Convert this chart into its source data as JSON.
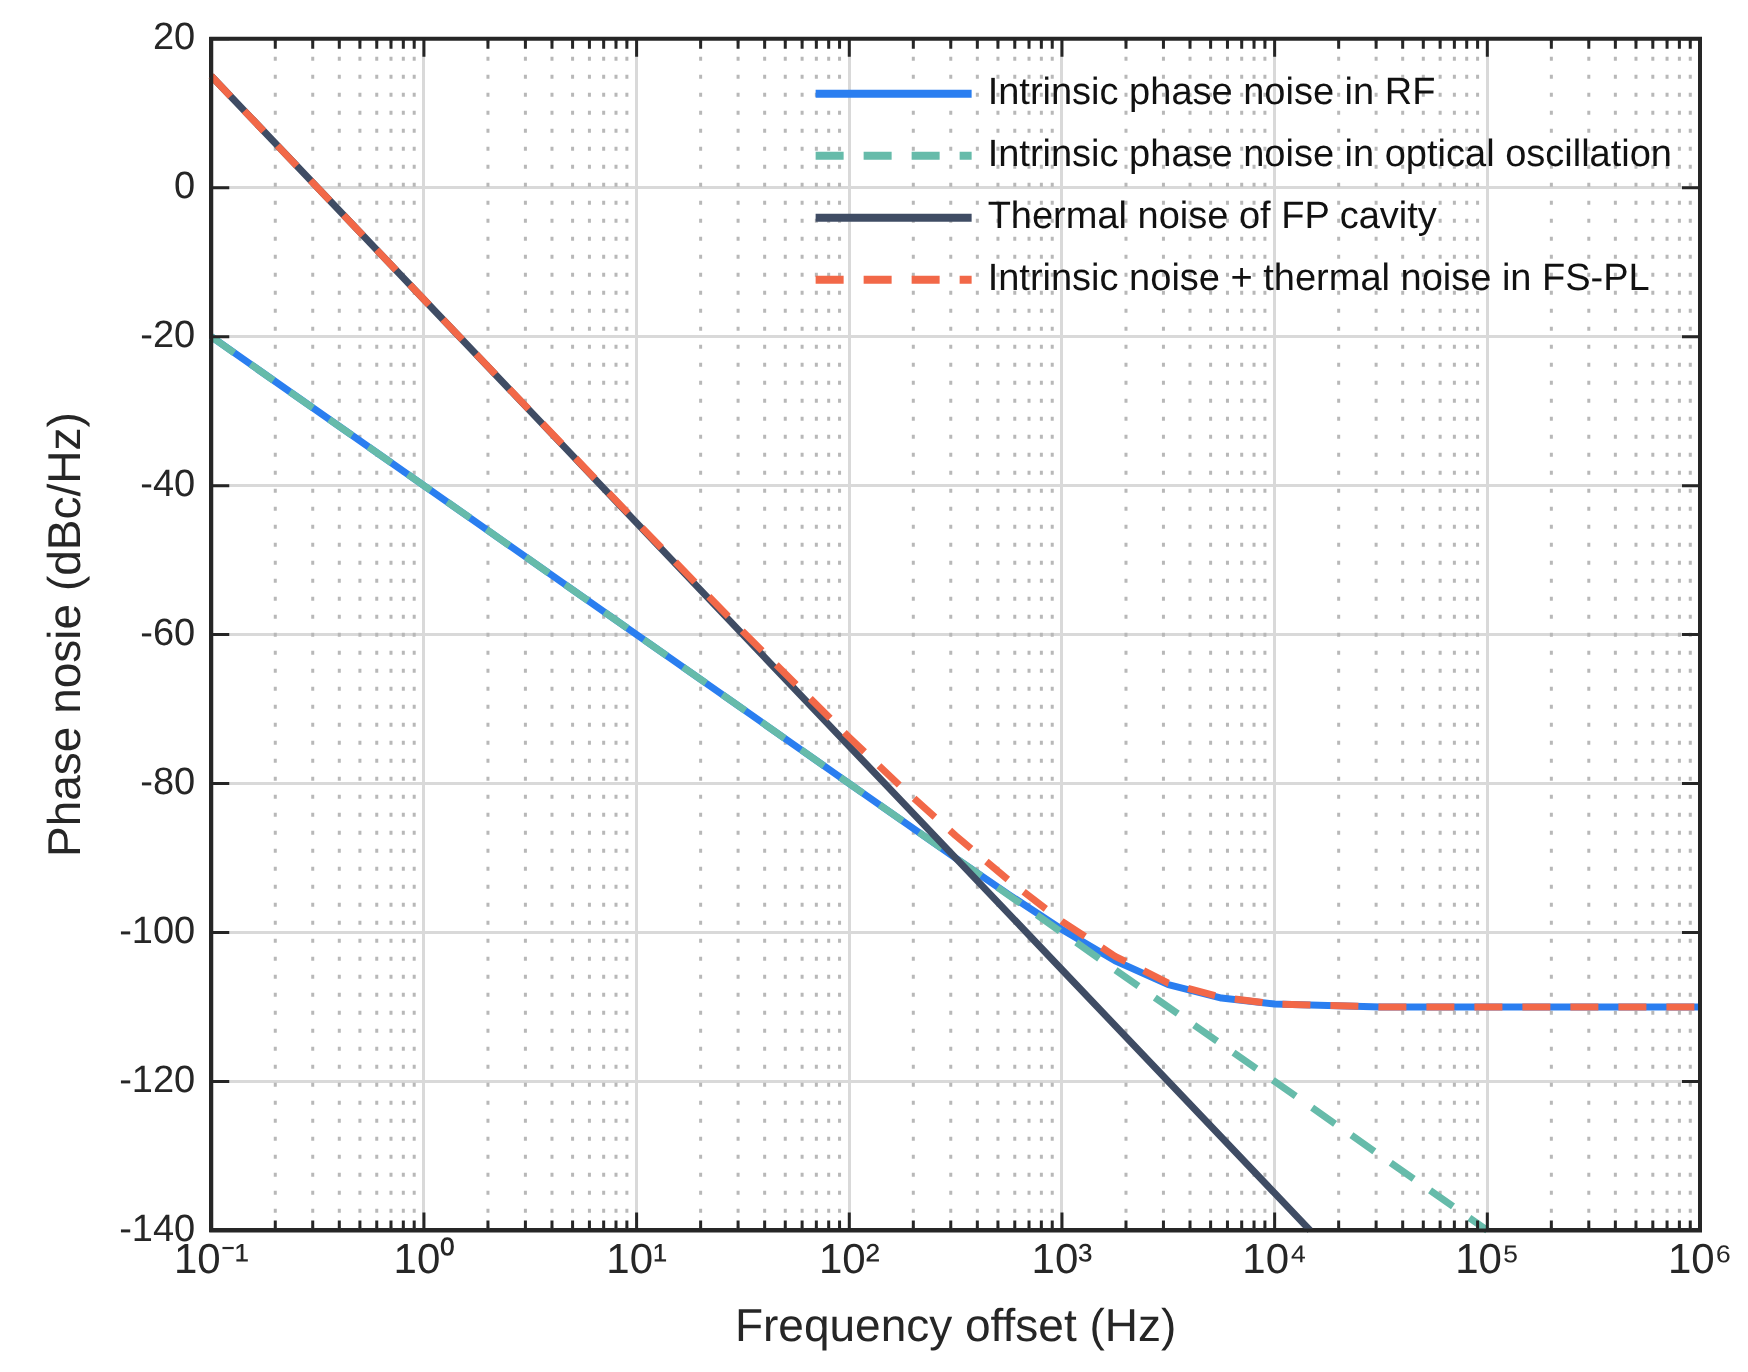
{
  "chart_data": {
    "type": "line",
    "xlabel": "Frequency offset (Hz)",
    "ylabel": "Phase nosie (dBc/Hz)",
    "log": "x",
    "grid": true,
    "legend": "top right",
    "xlim": [
      0.1,
      1000000
    ],
    "ylim": [
      -140,
      20
    ],
    "yticks": [
      -140,
      -120,
      -100,
      -80,
      -60,
      -40,
      -20,
      0,
      20
    ],
    "xticks": [
      {
        "value": 0.1,
        "label": "10⁻¹"
      },
      {
        "value": 0.2,
        "label": null
      },
      {
        "value": 0.3,
        "label": null
      },
      {
        "value": 0.4,
        "label": null
      },
      {
        "value": 0.5,
        "label": null
      },
      {
        "value": 0.6,
        "label": null
      },
      {
        "value": 0.7,
        "label": null
      },
      {
        "value": 0.8,
        "label": null
      },
      {
        "value": 0.9,
        "label": null
      },
      {
        "value": 1,
        "label": "10⁰"
      },
      {
        "value": 2,
        "label": null
      },
      {
        "value": 3,
        "label": null
      },
      {
        "value": 4,
        "label": null
      },
      {
        "value": 5,
        "label": null
      },
      {
        "value": 6,
        "label": null
      },
      {
        "value": 7,
        "label": null
      },
      {
        "value": 8,
        "label": null
      },
      {
        "value": 9,
        "label": null
      },
      {
        "value": 10,
        "label": "10¹"
      },
      {
        "value": 20,
        "label": null
      },
      {
        "value": 30,
        "label": null
      },
      {
        "value": 40,
        "label": null
      },
      {
        "value": 50,
        "label": null
      },
      {
        "value": 60,
        "label": null
      },
      {
        "value": 70,
        "label": null
      },
      {
        "value": 80,
        "label": null
      },
      {
        "value": 90,
        "label": null
      },
      {
        "value": 100,
        "label": "10²"
      },
      {
        "value": 200,
        "label": null
      },
      {
        "value": 300,
        "label": null
      },
      {
        "value": 400,
        "label": null
      },
      {
        "value": 500,
        "label": null
      },
      {
        "value": 600,
        "label": null
      },
      {
        "value": 700,
        "label": null
      },
      {
        "value": 800,
        "label": null
      },
      {
        "value": 900,
        "label": null
      },
      {
        "value": 1000,
        "label": "10³"
      },
      {
        "value": 2000,
        "label": null
      },
      {
        "value": 3000,
        "label": null
      },
      {
        "value": 4000,
        "label": null
      },
      {
        "value": 5000,
        "label": null
      },
      {
        "value": 6000,
        "label": null
      },
      {
        "value": 7000,
        "label": null
      },
      {
        "value": 8000,
        "label": null
      },
      {
        "value": 9000,
        "label": null
      },
      {
        "value": 10000,
        "label": "10⁴"
      },
      {
        "value": 20000,
        "label": null
      },
      {
        "value": 30000,
        "label": null
      },
      {
        "value": 40000,
        "label": null
      },
      {
        "value": 50000,
        "label": null
      },
      {
        "value": 60000,
        "label": null
      },
      {
        "value": 70000,
        "label": null
      },
      {
        "value": 80000,
        "label": null
      },
      {
        "value": 90000,
        "label": null
      },
      {
        "value": 100000,
        "label": "10⁵"
      },
      {
        "value": 200000,
        "label": null
      },
      {
        "value": 300000,
        "label": null
      },
      {
        "value": 400000,
        "label": null
      },
      {
        "value": 500000,
        "label": null
      },
      {
        "value": 600000,
        "label": null
      },
      {
        "value": 700000,
        "label": null
      },
      {
        "value": 800000,
        "label": null
      },
      {
        "value": 900000,
        "label": null
      },
      {
        "value": 1000000,
        "label": "10⁶"
      }
    ],
    "series": [
      {
        "name": "Intrinsic phase noise in RF",
        "color": "#2a7ef0",
        "line_style": "solid",
        "x": [
          0.1,
          1,
          10,
          100,
          316.2,
          562.3,
          1000,
          1778,
          3162,
          5623,
          10000,
          31623,
          100000,
          1000000
        ],
        "values": [
          -20,
          -40,
          -60,
          -80,
          -90,
          -94.9,
          -99.6,
          -103.8,
          -107,
          -108.8,
          -109.6,
          -110,
          -110,
          -110
        ]
      },
      {
        "name": "Intrinsic phase noise in optical oscillation",
        "color": "#66bbaa",
        "line_style": "dashed",
        "x": [
          0.1,
          1,
          10,
          100,
          1000,
          10000,
          100000
        ],
        "values": [
          -20,
          -40,
          -60,
          -80,
          -100,
          -120,
          -140
        ]
      },
      {
        "name": "Thermal noise of FP cavity",
        "color": "#3f4c64",
        "line_style": "solid",
        "x": [
          0.1,
          1,
          10,
          100,
          1000,
          10000,
          14678
        ],
        "values": [
          15,
          -15,
          -45,
          -75,
          -105,
          -135,
          -140
        ]
      },
      {
        "name": "Intrinsic noise + thermal noise in FS-PL",
        "color": "#f26848",
        "line_style": "dashed",
        "x": [
          0.1,
          1,
          10,
          31.62,
          100,
          177.8,
          316.2,
          562.3,
          1000,
          1778,
          3162,
          5623,
          10000,
          31623,
          100000,
          1000000
        ],
        "values": [
          15,
          -15,
          -44.9,
          -59.6,
          -73.8,
          -80.6,
          -87,
          -93,
          -98.5,
          -103.2,
          -106.8,
          -108.7,
          -109.6,
          -110,
          -110,
          -110
        ]
      }
    ]
  }
}
